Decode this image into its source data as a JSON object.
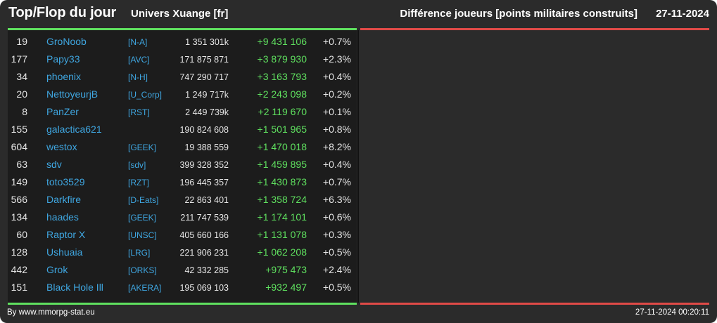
{
  "header": {
    "title": "Top/Flop du jour",
    "universe": "Univers Xuange [fr]",
    "subtitle": "Différence joueurs [points militaires construits]",
    "date": "27-11-2024"
  },
  "top_players": [
    {
      "rank": "19",
      "name": "GroNoob",
      "alliance": "[N-A]",
      "total": "1 351 301k",
      "diff": "+9 431 106",
      "pct": "+0.7%"
    },
    {
      "rank": "177",
      "name": "Papy33",
      "alliance": "[AVC]",
      "total": "171 875 871",
      "diff": "+3 879 930",
      "pct": "+2.3%"
    },
    {
      "rank": "34",
      "name": "phoenix",
      "alliance": "[N-H]",
      "total": "747 290 717",
      "diff": "+3 163 793",
      "pct": "+0.4%"
    },
    {
      "rank": "20",
      "name": "NettoyeurjB",
      "alliance": "[U_Corp]",
      "total": "1 249 717k",
      "diff": "+2 243 098",
      "pct": "+0.2%"
    },
    {
      "rank": "8",
      "name": "PanZer",
      "alliance": "[RST]",
      "total": "2 449 739k",
      "diff": "+2 119 670",
      "pct": "+0.1%"
    },
    {
      "rank": "155",
      "name": "galactica621",
      "alliance": "",
      "total": "190 824 608",
      "diff": "+1 501 965",
      "pct": "+0.8%"
    },
    {
      "rank": "604",
      "name": "westox",
      "alliance": "[GEEK]",
      "total": "19 388 559",
      "diff": "+1 470 018",
      "pct": "+8.2%"
    },
    {
      "rank": "63",
      "name": "sdv",
      "alliance": "[sdv]",
      "total": "399 328 352",
      "diff": "+1 459 895",
      "pct": "+0.4%"
    },
    {
      "rank": "149",
      "name": "toto3529",
      "alliance": "[RZT]",
      "total": "196 445 357",
      "diff": "+1 430 873",
      "pct": "+0.7%"
    },
    {
      "rank": "566",
      "name": "Darkfire",
      "alliance": "[D-Eats]",
      "total": "22 863 401",
      "diff": "+1 358 724",
      "pct": "+6.3%"
    },
    {
      "rank": "134",
      "name": "haades",
      "alliance": "[GEEK]",
      "total": "211 747 539",
      "diff": "+1 174 101",
      "pct": "+0.6%"
    },
    {
      "rank": "60",
      "name": "Raptor X",
      "alliance": "[UNSC]",
      "total": "405 660 166",
      "diff": "+1 131 078",
      "pct": "+0.3%"
    },
    {
      "rank": "128",
      "name": "Ushuaia",
      "alliance": "[LRG]",
      "total": "221 906 231",
      "diff": "+1 062 208",
      "pct": "+0.5%"
    },
    {
      "rank": "442",
      "name": "Grok",
      "alliance": "[ORKS]",
      "total": "42 332 285",
      "diff": "+975 473",
      "pct": "+2.4%"
    },
    {
      "rank": "151",
      "name": "Black Hole Ill",
      "alliance": "[AKERA]",
      "total": "195 069 103",
      "diff": "+932 497",
      "pct": "+0.5%"
    }
  ],
  "footer": {
    "credit": "By www.mmorpg-stat.eu",
    "timestamp": "27-11-2024 00:20:11"
  },
  "colors": {
    "background": "#2b2b2b",
    "panel": "#1c1c1c",
    "accent_green": "#5fe05f",
    "accent_red": "#e04a47",
    "link_blue": "#3fa6e0"
  }
}
